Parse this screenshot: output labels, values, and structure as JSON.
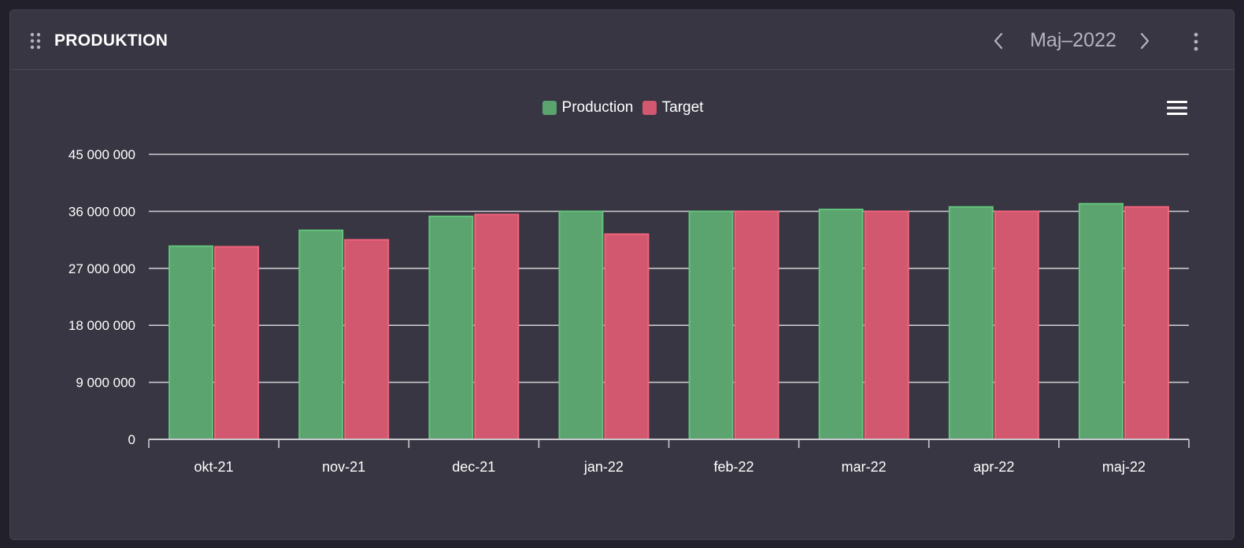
{
  "header": {
    "title": "PRODUKTION",
    "period": "Maj–2022",
    "icons": {
      "drag": "drag-handle-icon",
      "prev": "chevron-left-icon",
      "next": "chevron-right-icon",
      "more": "more-vertical-icon",
      "chart_menu": "hamburger-menu-icon"
    }
  },
  "colors": {
    "production": "#5ba470",
    "production_border": "#63c27a",
    "target": "#d1586e",
    "target_border": "#f0647c",
    "grid": "#c8c8cc",
    "text": "#ffffff"
  },
  "chart_data": {
    "type": "bar",
    "title": "",
    "xlabel": "",
    "ylabel": "",
    "categories": [
      "okt-21",
      "nov-21",
      "dec-21",
      "jan-22",
      "feb-22",
      "mar-22",
      "apr-22",
      "maj-22"
    ],
    "series": [
      {
        "name": "Production",
        "values": [
          30500000,
          33000000,
          35200000,
          36000000,
          36000000,
          36300000,
          36700000,
          37200000
        ]
      },
      {
        "name": "Target",
        "values": [
          30400000,
          31500000,
          35500000,
          32400000,
          36000000,
          36000000,
          36000000,
          36700000
        ]
      }
    ],
    "ylim": [
      0,
      45000000
    ],
    "yticks": [
      0,
      9000000,
      18000000,
      27000000,
      36000000,
      45000000
    ],
    "ytick_labels": [
      "0",
      "9 000 000",
      "18 000 000",
      "27 000 000",
      "36 000 000",
      "45 000 000"
    ],
    "grid": true,
    "legend_position": "top-center"
  }
}
